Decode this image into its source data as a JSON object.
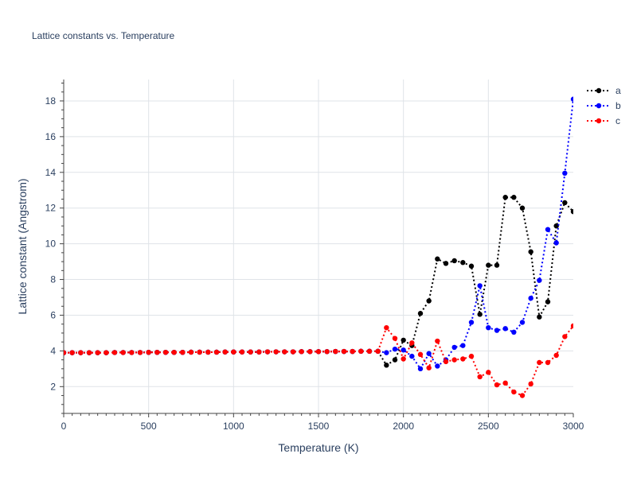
{
  "chart_data": {
    "type": "line",
    "title": "Lattice constants vs. Temperature",
    "xlabel": "Temperature (K)",
    "ylabel": "Lattice constant (Angstrom)",
    "xlim": [
      0,
      3000
    ],
    "ylim": [
      0.5,
      19.2
    ],
    "xticks": [
      0,
      500,
      1000,
      1500,
      2000,
      2500,
      3000
    ],
    "yticks": [
      2,
      4,
      6,
      8,
      10,
      12,
      14,
      16,
      18
    ],
    "grid": true,
    "legend_position": "top-right",
    "line_style": "dotted",
    "x": [
      0,
      50,
      100,
      150,
      200,
      250,
      300,
      350,
      400,
      450,
      500,
      550,
      600,
      650,
      700,
      750,
      800,
      850,
      900,
      950,
      1000,
      1050,
      1100,
      1150,
      1200,
      1250,
      1300,
      1350,
      1400,
      1450,
      1500,
      1550,
      1600,
      1650,
      1700,
      1750,
      1800,
      1850,
      1900,
      1950,
      2000,
      2050,
      2100,
      2150,
      2200,
      2250,
      2300,
      2350,
      2400,
      2450,
      2500,
      2550,
      2600,
      2650,
      2700,
      2750,
      2800,
      2850,
      2900,
      2950,
      3000
    ],
    "series": [
      {
        "name": "a",
        "color": "#000000",
        "values": [
          3.9,
          3.9,
          3.9,
          3.9,
          3.9,
          3.9,
          3.91,
          3.91,
          3.91,
          3.91,
          3.92,
          3.92,
          3.92,
          3.92,
          3.92,
          3.93,
          3.93,
          3.93,
          3.93,
          3.94,
          3.94,
          3.94,
          3.94,
          3.94,
          3.95,
          3.95,
          3.95,
          3.95,
          3.96,
          3.96,
          3.96,
          3.96,
          3.97,
          3.97,
          3.97,
          3.98,
          3.98,
          3.98,
          3.2,
          3.5,
          4.6,
          4.3,
          6.1,
          6.8,
          9.15,
          8.9,
          9.05,
          8.95,
          8.75,
          6.05,
          8.8,
          8.8,
          12.6,
          12.6,
          12.0,
          9.55,
          5.9,
          6.75,
          11.0,
          12.3,
          11.8
        ]
      },
      {
        "name": "b",
        "color": "#0000ff",
        "values": [
          3.9,
          3.9,
          3.9,
          3.9,
          3.9,
          3.9,
          3.91,
          3.91,
          3.91,
          3.91,
          3.92,
          3.92,
          3.92,
          3.92,
          3.92,
          3.93,
          3.93,
          3.93,
          3.93,
          3.94,
          3.94,
          3.94,
          3.94,
          3.94,
          3.95,
          3.95,
          3.95,
          3.95,
          3.96,
          3.96,
          3.96,
          3.96,
          3.97,
          3.97,
          3.97,
          3.98,
          3.98,
          3.98,
          3.9,
          4.1,
          4.05,
          3.7,
          3.0,
          3.85,
          3.15,
          3.5,
          4.2,
          4.3,
          5.6,
          7.65,
          5.3,
          5.15,
          5.25,
          5.05,
          5.6,
          6.95,
          7.95,
          10.8,
          10.05,
          13.95,
          18.1
        ]
      },
      {
        "name": "c",
        "color": "#ff0000",
        "values": [
          3.9,
          3.9,
          3.9,
          3.9,
          3.9,
          3.9,
          3.91,
          3.91,
          3.91,
          3.91,
          3.92,
          3.92,
          3.92,
          3.92,
          3.92,
          3.93,
          3.93,
          3.93,
          3.93,
          3.94,
          3.94,
          3.94,
          3.94,
          3.94,
          3.95,
          3.95,
          3.95,
          3.95,
          3.96,
          3.96,
          3.96,
          3.96,
          3.97,
          3.97,
          3.97,
          3.98,
          3.98,
          3.98,
          5.3,
          4.7,
          3.55,
          4.45,
          3.8,
          3.05,
          4.55,
          3.4,
          3.5,
          3.55,
          3.7,
          2.55,
          2.8,
          2.1,
          2.2,
          1.7,
          1.5,
          2.15,
          3.35,
          3.35,
          3.75,
          4.8,
          5.4
        ]
      }
    ]
  }
}
